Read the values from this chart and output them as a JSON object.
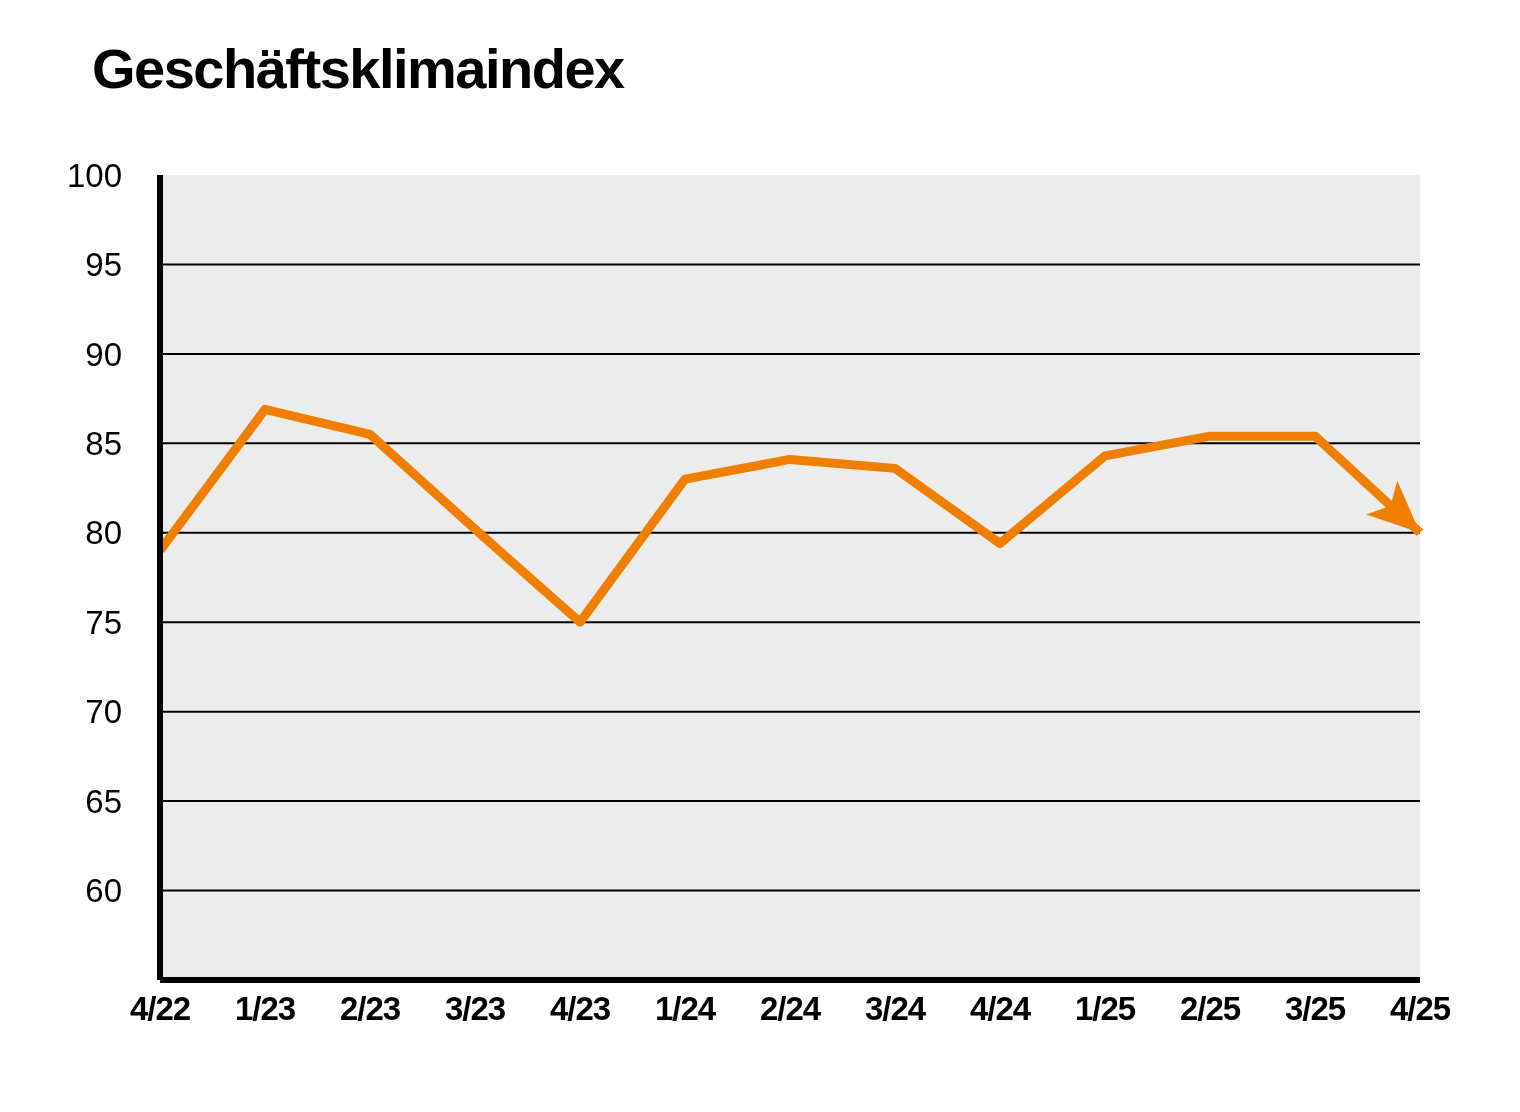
{
  "chart_data": {
    "type": "line",
    "title": "Geschäftsklimaindex",
    "categories": [
      "4/22",
      "1/23",
      "2/23",
      "3/23",
      "4/23",
      "1/24",
      "2/24",
      "3/24",
      "4/24",
      "1/25",
      "2/25",
      "3/25",
      "4/25"
    ],
    "series": [
      {
        "color": "#f07f00",
        "values": [
          79.0,
          86.9,
          85.5,
          80.2,
          75.0,
          83.0,
          84.1,
          83.6,
          79.4,
          84.3,
          85.4,
          85.4,
          80.0
        ]
      }
    ],
    "ylim": [
      55,
      100
    ],
    "yticks": [
      60,
      65,
      70,
      75,
      80,
      85,
      90,
      95,
      100
    ],
    "grid": "y",
    "legend": false,
    "marker": "none",
    "line_style": "solid"
  }
}
